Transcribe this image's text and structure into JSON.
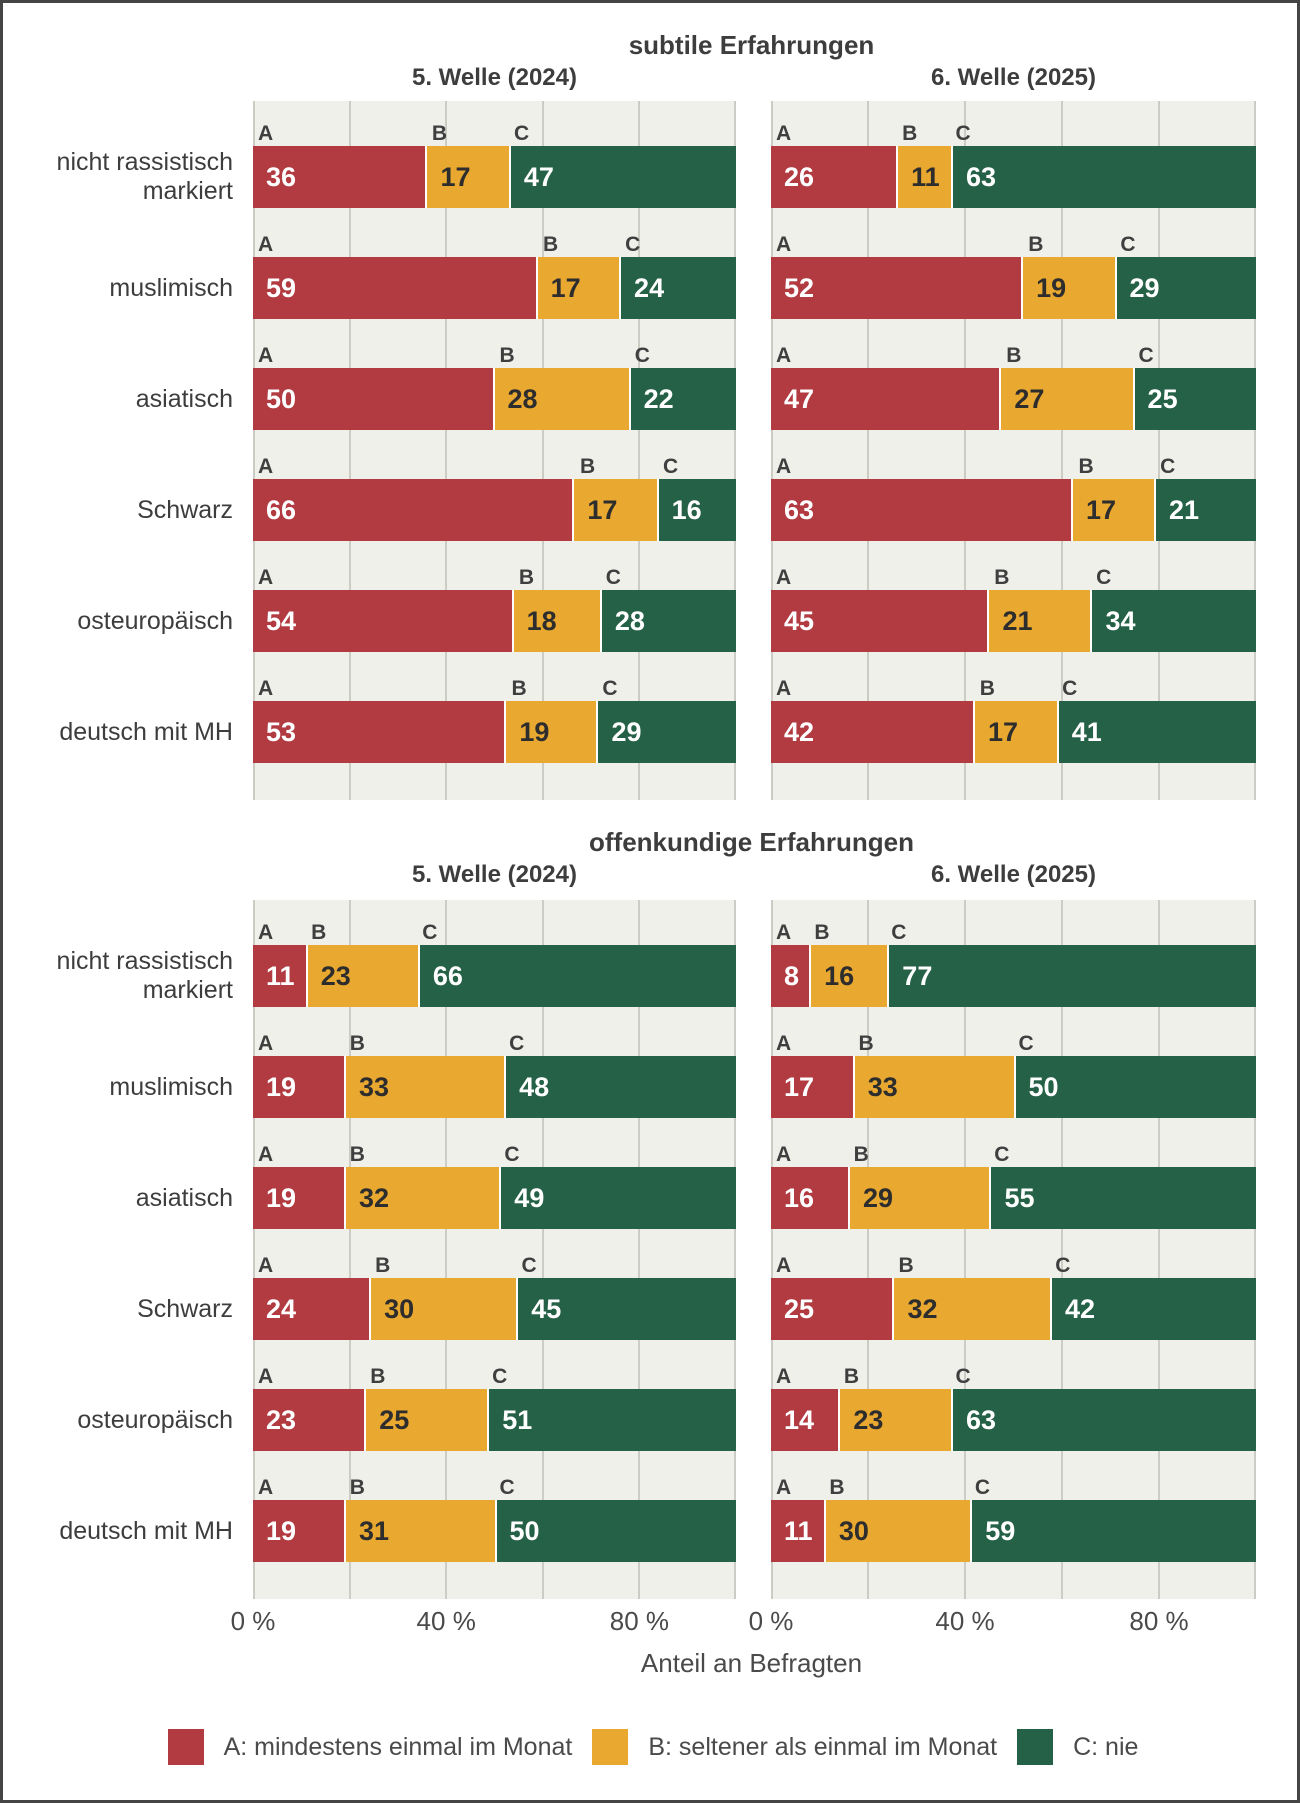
{
  "colors": {
    "A": "#b23a41",
    "B": "#e9a82f",
    "C": "#256147",
    "panel_background": "#f0f0eb",
    "gridline": "#ccccc5",
    "text": "#3d3d3d",
    "frame_border": "#454545"
  },
  "letters": [
    "A",
    "B",
    "C"
  ],
  "axis": {
    "xlabel": "Anteil an Befragten",
    "ticks": [
      {
        "label": "0 %",
        "pos": 0
      },
      {
        "label": "40 %",
        "pos": 40
      },
      {
        "label": "80 %",
        "pos": 80
      }
    ]
  },
  "legend": [
    {
      "letter": "A",
      "label": "A: mindestens einmal im Monat",
      "color": "#b23a41"
    },
    {
      "letter": "B",
      "label": "B: seltener als einmal im Monat",
      "color": "#e9a82f"
    },
    {
      "letter": "C",
      "label": "C: nie",
      "color": "#256147"
    }
  ],
  "chart_data": [
    {
      "type": "bar",
      "orientation": "horizontal",
      "stacked": true,
      "grid": true,
      "title": "subtile Erfahrungen",
      "categories": [
        "nicht rassistisch markiert",
        "muslimisch",
        "asiatisch",
        "Schwarz",
        "osteuropäisch",
        "deutsch mit MH"
      ],
      "xlabel": "Anteil an Befragten",
      "xlim": [
        0,
        100
      ],
      "xticks": [
        "0 %",
        "40 %",
        "80 %"
      ],
      "facets": [
        {
          "title": "5. Welle (2024)",
          "series": [
            {
              "name": "A: mindestens einmal im Monat",
              "values": [
                36,
                59,
                50,
                66,
                54,
                53
              ]
            },
            {
              "name": "B: seltener als einmal im Monat",
              "values": [
                17,
                17,
                28,
                17,
                18,
                19
              ]
            },
            {
              "name": "C: nie",
              "values": [
                47,
                24,
                22,
                16,
                28,
                29
              ]
            }
          ]
        },
        {
          "title": "6. Welle (2025)",
          "series": [
            {
              "name": "A: mindestens einmal im Monat",
              "values": [
                26,
                52,
                47,
                63,
                45,
                42
              ]
            },
            {
              "name": "B: seltener als einmal im Monat",
              "values": [
                11,
                19,
                27,
                17,
                21,
                17
              ]
            },
            {
              "name": "C: nie",
              "values": [
                63,
                29,
                25,
                21,
                34,
                41
              ]
            }
          ]
        }
      ]
    },
    {
      "type": "bar",
      "orientation": "horizontal",
      "stacked": true,
      "grid": true,
      "title": "offenkundige Erfahrungen",
      "categories": [
        "nicht rassistisch markiert",
        "muslimisch",
        "asiatisch",
        "Schwarz",
        "osteuropäisch",
        "deutsch mit MH"
      ],
      "xlabel": "Anteil an Befragten",
      "xlim": [
        0,
        100
      ],
      "xticks": [
        "0 %",
        "40 %",
        "80 %"
      ],
      "facets": [
        {
          "title": "5. Welle (2024)",
          "series": [
            {
              "name": "A: mindestens einmal im Monat",
              "values": [
                11,
                19,
                19,
                24,
                23,
                19
              ]
            },
            {
              "name": "B: seltener als einmal im Monat",
              "values": [
                23,
                33,
                32,
                30,
                25,
                31
              ]
            },
            {
              "name": "C: nie",
              "values": [
                66,
                48,
                49,
                45,
                51,
                50
              ]
            }
          ]
        },
        {
          "title": "6. Welle (2025)",
          "series": [
            {
              "name": "A: mindestens einmal im Monat",
              "values": [
                8,
                17,
                16,
                25,
                14,
                11
              ]
            },
            {
              "name": "B: seltener als einmal im Monat",
              "values": [
                16,
                33,
                29,
                32,
                23,
                30
              ]
            },
            {
              "name": "C: nie",
              "values": [
                77,
                50,
                55,
                42,
                63,
                59
              ]
            }
          ]
        }
      ]
    }
  ]
}
